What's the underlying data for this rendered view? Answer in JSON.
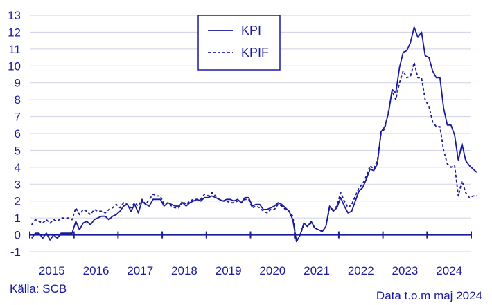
{
  "colors": {
    "series": "#1a1a9c",
    "grid": "#cfd0e6",
    "axis": "#1a1a9c"
  },
  "source_text": "Källa: SCB",
  "data_note": "Data t.o.m maj 2024",
  "chart_data": {
    "type": "line",
    "title": "",
    "xlabel": "",
    "ylabel": "",
    "ylim": [
      -1,
      13
    ],
    "y_ticks": [
      -1,
      0,
      1,
      2,
      3,
      4,
      5,
      6,
      7,
      8,
      9,
      10,
      11,
      12,
      13
    ],
    "x_ticks": [
      "2015",
      "2016",
      "2017",
      "2018",
      "2019",
      "2020",
      "2021",
      "2022",
      "2023",
      "2024"
    ],
    "grid": "horizontal",
    "legend": "top-center",
    "x_start": "2015-01",
    "x_end": "2024-05",
    "series": [
      {
        "name": "KPI",
        "style": "solid",
        "values": [
          -0.2,
          0.1,
          0.1,
          -0.2,
          0.1,
          -0.3,
          0.0,
          -0.2,
          0.1,
          0.1,
          0.1,
          0.1,
          0.8,
          0.3,
          0.7,
          0.8,
          0.6,
          0.9,
          1.0,
          1.1,
          1.1,
          0.9,
          1.1,
          1.2,
          1.4,
          1.7,
          1.8,
          1.4,
          1.8,
          1.3,
          2.0,
          1.8,
          1.7,
          2.1,
          2.1,
          2.1,
          1.7,
          1.9,
          1.8,
          1.7,
          1.7,
          1.9,
          1.7,
          1.9,
          2.0,
          2.1,
          2.0,
          2.2,
          2.2,
          2.3,
          2.2,
          2.1,
          2.0,
          2.1,
          2.1,
          2.0,
          2.1,
          1.9,
          2.2,
          2.2,
          1.7,
          1.8,
          1.8,
          1.5,
          1.5,
          1.6,
          1.7,
          1.9,
          1.8,
          1.6,
          1.4,
          0.9,
          -0.4,
          0.0,
          0.7,
          0.5,
          0.8,
          0.4,
          0.3,
          0.2,
          0.5,
          1.7,
          1.4,
          1.6,
          2.2,
          1.7,
          1.3,
          1.4,
          2.0,
          2.6,
          2.8,
          3.3,
          3.9,
          3.8,
          4.2,
          6.1,
          6.4,
          7.2,
          8.6,
          8.4,
          9.9,
          10.8,
          10.9,
          11.4,
          12.3,
          11.7,
          12.0,
          10.6,
          10.5,
          9.7,
          9.3,
          9.3,
          7.5,
          6.5,
          6.5,
          5.9,
          4.4,
          5.4,
          4.4,
          4.1,
          3.9,
          3.7
        ],
        "start_month_offset": 0
      },
      {
        "name": "KPIF",
        "style": "dashed",
        "values": [
          0.6,
          0.9,
          0.8,
          0.7,
          0.9,
          0.7,
          0.9,
          0.8,
          1.0,
          1.0,
          1.0,
          0.9,
          1.6,
          1.2,
          1.5,
          1.4,
          1.2,
          1.5,
          1.4,
          1.4,
          1.3,
          1.5,
          1.6,
          1.8,
          1.6,
          1.9,
          1.8,
          1.6,
          1.9,
          1.7,
          2.1,
          1.8,
          2.1,
          2.4,
          2.3,
          2.3,
          1.8,
          1.9,
          1.7,
          1.6,
          1.6,
          2.0,
          1.8,
          2.0,
          2.1,
          2.1,
          2.1,
          2.4,
          2.3,
          2.5,
          2.3,
          2.1,
          2.0,
          2.0,
          1.9,
          1.9,
          2.0,
          1.9,
          2.1,
          2.1,
          1.6,
          1.7,
          1.6,
          1.4,
          1.3,
          1.5,
          1.5,
          1.8,
          1.7,
          1.5,
          1.4,
          1.1,
          -0.4,
          0.0,
          0.6,
          0.5,
          0.7,
          0.4,
          0.3,
          0.2,
          0.5,
          1.6,
          1.5,
          1.7,
          2.5,
          2.0,
          1.6,
          1.8,
          2.3,
          2.8,
          3.0,
          3.5,
          4.1,
          3.9,
          4.4,
          6.0,
          6.3,
          7.3,
          8.5,
          8.0,
          9.0,
          9.7,
          9.3,
          9.4,
          10.2,
          9.3,
          9.3,
          8.0,
          7.6,
          6.7,
          6.4,
          6.4,
          5.0,
          4.2,
          4.0,
          4.1,
          2.3,
          3.2,
          2.5,
          2.2,
          2.3,
          2.3
        ],
        "start_month_offset": 0
      }
    ]
  }
}
